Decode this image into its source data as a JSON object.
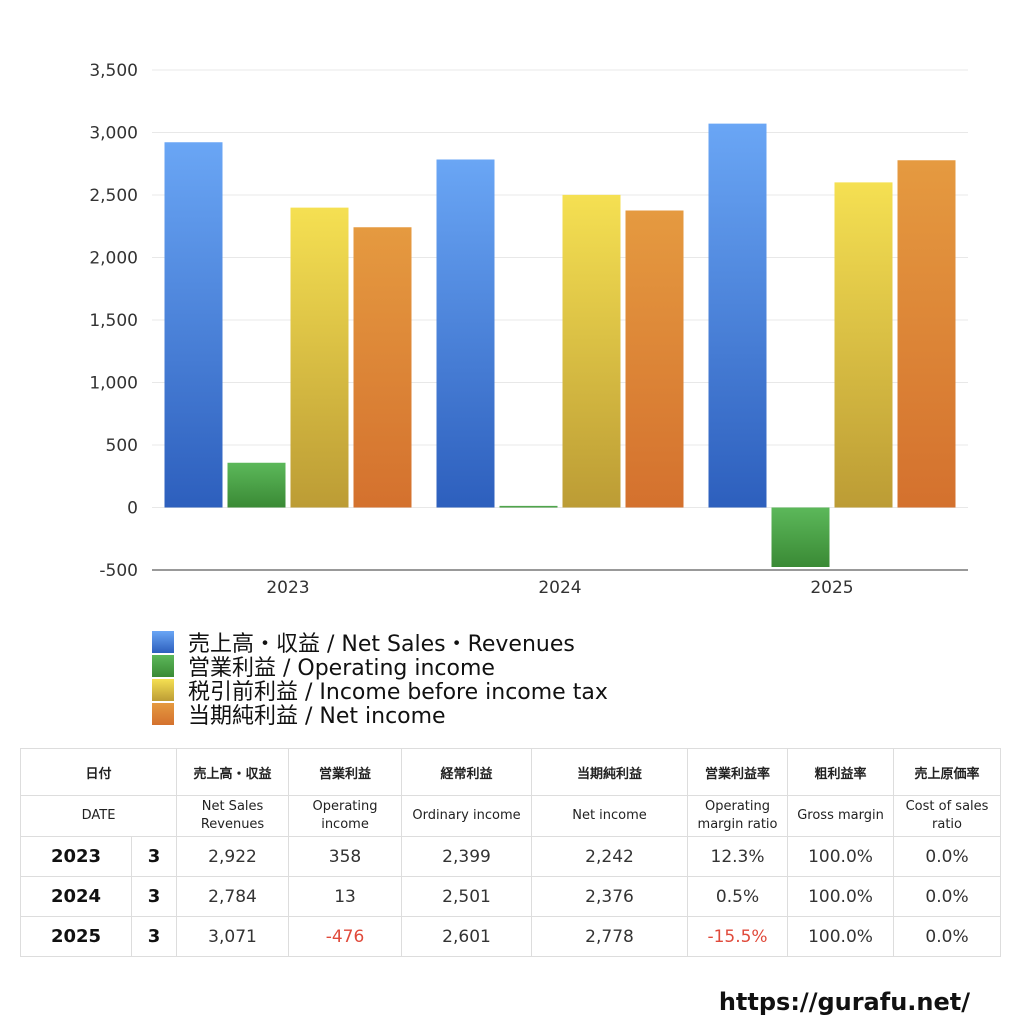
{
  "chart_data": {
    "type": "bar",
    "categories": [
      "2023",
      "2024",
      "2025"
    ],
    "series": [
      {
        "name": "売上高・収益 / Net Sales・Revenues",
        "color_top": "#6aa6f5",
        "color_bottom": "#2d5fbd",
        "values": [
          2922,
          2784,
          3071
        ]
      },
      {
        "name": "営業利益 / Operating income",
        "color_top": "#5cb85a",
        "color_bottom": "#3a8a35",
        "values": [
          358,
          13,
          -476
        ]
      },
      {
        "name": "税引前利益 / Income before income tax",
        "color_top": "#f5e052",
        "color_bottom": "#bc9c35",
        "values": [
          2399,
          2501,
          2601
        ]
      },
      {
        "name": "当期純利益 / Net income",
        "color_top": "#e59a40",
        "color_bottom": "#d4712e",
        "values": [
          2242,
          2376,
          2778
        ]
      }
    ],
    "yticks": [
      "3,500",
      "3,000",
      "2,500",
      "2,000",
      "1,500",
      "1,000",
      "500",
      "0",
      "-500"
    ],
    "ytick_values": [
      3500,
      3000,
      2500,
      2000,
      1500,
      1000,
      500,
      0,
      -500
    ],
    "ylim": [
      -500,
      3500
    ],
    "grid": true,
    "legend_position": "bottom"
  },
  "table": {
    "header_jp": [
      "日付",
      "売上高・収益",
      "営業利益",
      "経常利益",
      "当期純利益",
      "営業利益率",
      "粗利益率",
      "売上原価率"
    ],
    "header_en": [
      "DATE",
      "Net Sales Revenues",
      "Operating income",
      "Ordinary income",
      "Net income",
      "Operating margin ratio",
      "Gross margin",
      "Cost of sales ratio"
    ],
    "rows": [
      {
        "year": "2023",
        "month": "3",
        "net_sales": "2,922",
        "operating_income": "358",
        "ordinary_income": "2,399",
        "net_income": "2,242",
        "operating_margin": "12.3%",
        "gross_margin": "100.0%",
        "cost_ratio": "0.0%"
      },
      {
        "year": "2024",
        "month": "3",
        "net_sales": "2,784",
        "operating_income": "13",
        "ordinary_income": "2,501",
        "net_income": "2,376",
        "operating_margin": "0.5%",
        "gross_margin": "100.0%",
        "cost_ratio": "0.0%"
      },
      {
        "year": "2025",
        "month": "3",
        "net_sales": "3,071",
        "operating_income": "-476",
        "ordinary_income": "2,601",
        "net_income": "2,778",
        "operating_margin": "-15.5%",
        "gross_margin": "100.0%",
        "cost_ratio": "0.0%"
      }
    ],
    "negative_color": "#e04a3b"
  },
  "footer": {
    "url": "https://gurafu.net/"
  }
}
